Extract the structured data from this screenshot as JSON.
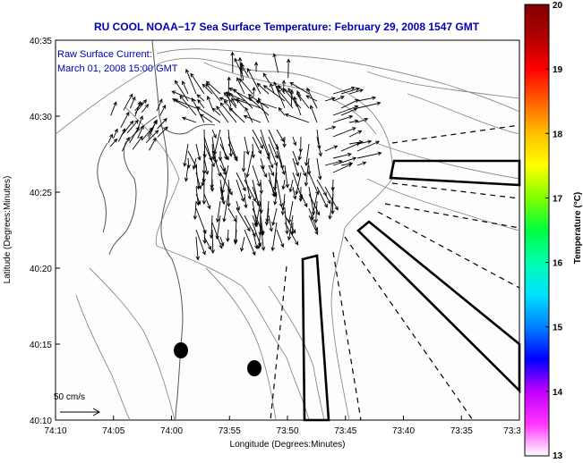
{
  "title": "RU COOL  NOAA−17  Sea Surface Temperature:  February 29, 2008 1547 GMT",
  "annotation_line1": "Raw Surface Current:",
  "annotation_line2": "March 01, 2008 15:00 GMT",
  "scale_label": "50 cm/s",
  "xaxis": {
    "label": "Longitude (Degrees:Minutes)",
    "ticks": [
      "74:10",
      "74:05",
      "74:00",
      "73:55",
      "73:50",
      "73:45",
      "73:40",
      "73:35",
      "73:3"
    ],
    "minutes_west": [
      10,
      5,
      0,
      -5,
      -10,
      -15,
      -20,
      -25,
      -30
    ]
  },
  "yaxis": {
    "label": "Latitude (Degrees:Minutes)",
    "ticks": [
      "40:35",
      "40:30",
      "40:25",
      "40:20",
      "40:15",
      "40:10"
    ],
    "minutes_north": [
      35,
      30,
      25,
      20,
      15,
      10
    ]
  },
  "colorbar": {
    "label": "Temperature (°C)",
    "ticks": [
      "20",
      "19",
      "18",
      "17",
      "16",
      "15",
      "14",
      "13"
    ],
    "min": 13,
    "max": 20,
    "colors": [
      "#ffffff",
      "#ff33ff",
      "#c000ff",
      "#0000ff",
      "#0080ff",
      "#00e0ff",
      "#00ffb0",
      "#00ff40",
      "#80ff00",
      "#ffff00",
      "#ffc000",
      "#ff6000",
      "#ff0000",
      "#b00000",
      "#800000"
    ]
  },
  "chart_data": {
    "type": "map",
    "title": "RU COOL  NOAA-17  Sea Surface Temperature:  February 29, 2008 1547 GMT",
    "xlabel": "Longitude (Degrees:Minutes)",
    "ylabel": "Latitude (Degrees:Minutes)",
    "xlim_min_west": [
      74.1667,
      73.5
    ],
    "ylim": [
      40.1667,
      40.5833
    ],
    "markers": [
      {
        "name": "dot-1",
        "lon": 73.9767,
        "lat": 40.2433
      },
      {
        "name": "dot-2",
        "lon": 73.9033,
        "lat": 40.2267
      }
    ]
  }
}
